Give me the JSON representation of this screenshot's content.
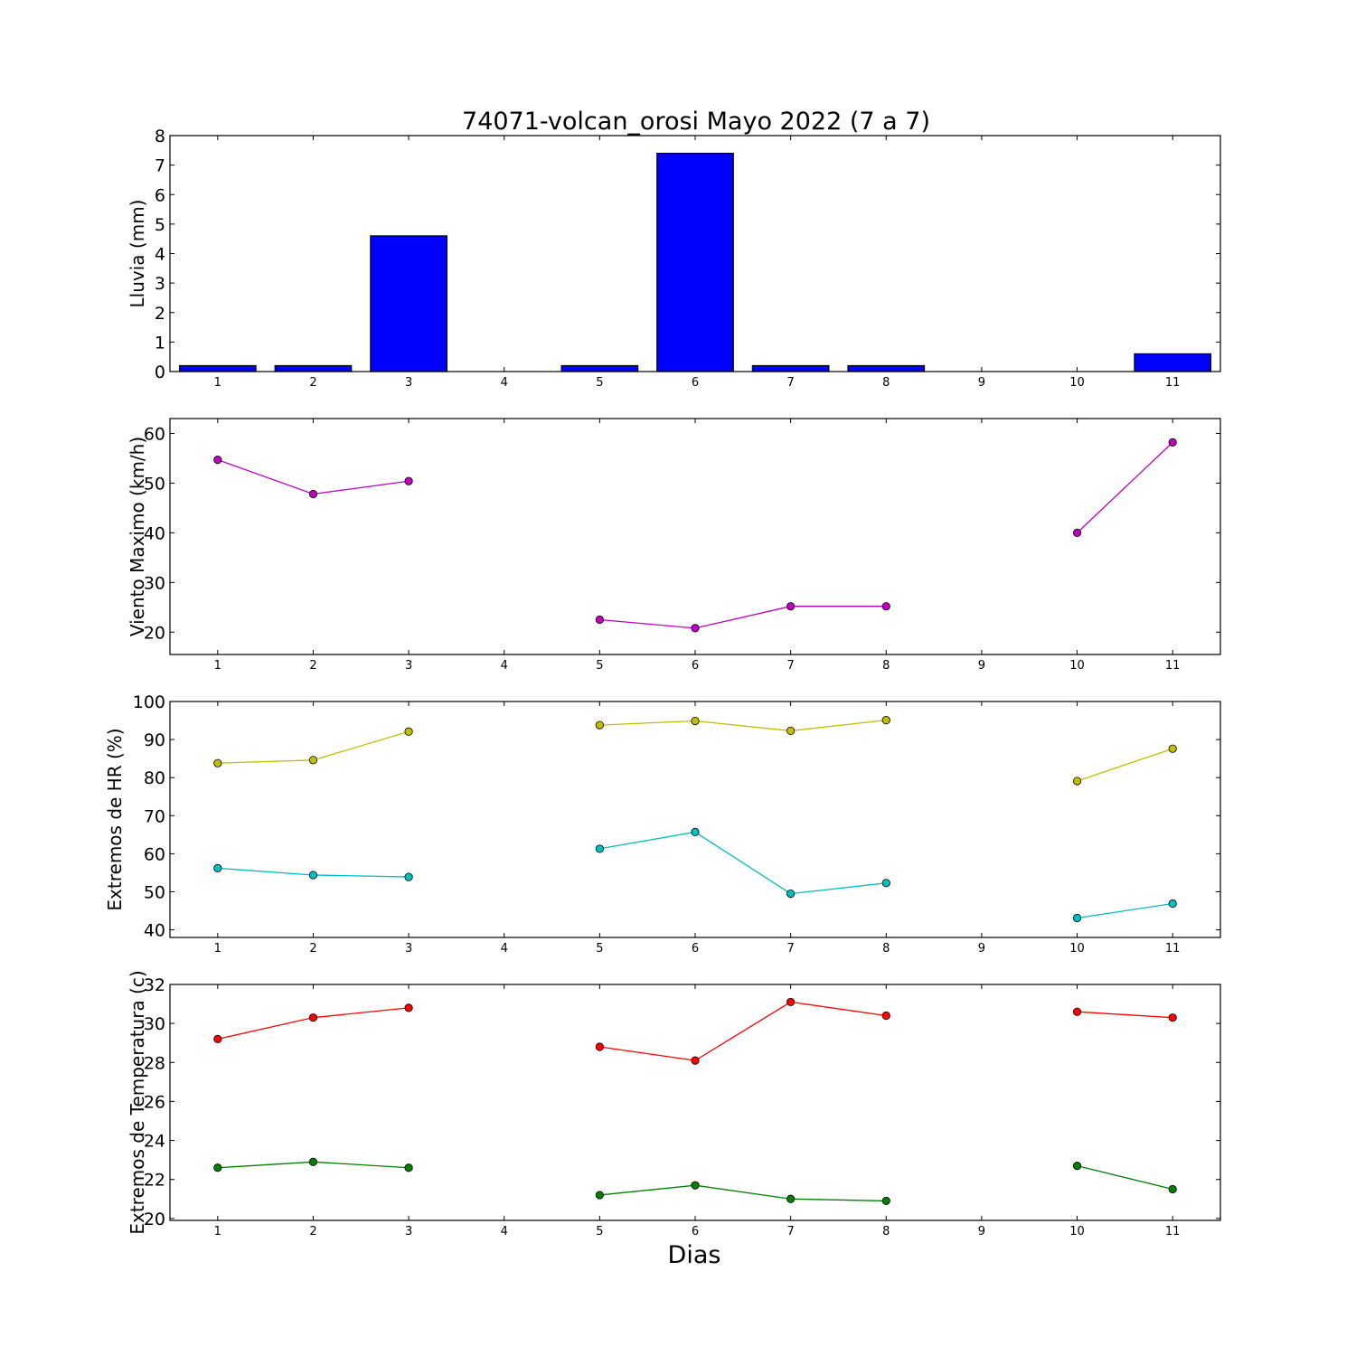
{
  "title": "74071-volcan_orosi Mayo 2022  (7 a 7)",
  "xlabel": "Dias",
  "chart_data": [
    {
      "type": "bar",
      "ylabel": "Lluvia (mm)",
      "xlim": [
        0.5,
        11.5
      ],
      "ylim": [
        0,
        8
      ],
      "yticks": [
        0,
        1,
        2,
        3,
        4,
        5,
        6,
        7,
        8
      ],
      "xticks": [
        1,
        2,
        3,
        4,
        5,
        6,
        7,
        8,
        9,
        10,
        11
      ],
      "categories": [
        1,
        2,
        3,
        4,
        5,
        6,
        7,
        8,
        9,
        10,
        11
      ],
      "values": [
        0.2,
        0.2,
        4.6,
        null,
        0.2,
        7.4,
        0.2,
        0.2,
        null,
        0.0,
        0.6
      ],
      "color": "#0000ff"
    },
    {
      "type": "line",
      "ylabel": "Viento Maximo (km/h)",
      "xlim": [
        0.5,
        11.5
      ],
      "ylim": [
        15.5,
        63
      ],
      "yticks": [
        20,
        30,
        40,
        50,
        60
      ],
      "xticks": [
        1,
        2,
        3,
        4,
        5,
        6,
        7,
        8,
        9,
        10,
        11
      ],
      "series": [
        {
          "x": [
            1,
            2,
            3,
            4,
            5,
            6,
            7,
            8,
            9,
            10,
            11
          ],
          "values": [
            54.7,
            47.8,
            50.4,
            null,
            22.5,
            20.8,
            25.2,
            25.2,
            null,
            40.0,
            58.2
          ],
          "color": "#bf00bf"
        }
      ]
    },
    {
      "type": "line",
      "ylabel": "Extremos de HR (%)",
      "xlim": [
        0.5,
        11.5
      ],
      "ylim": [
        38,
        100
      ],
      "yticks": [
        40,
        50,
        60,
        70,
        80,
        90,
        100
      ],
      "xticks": [
        1,
        2,
        3,
        4,
        5,
        6,
        7,
        8,
        9,
        10,
        11
      ],
      "series": [
        {
          "x": [
            1,
            2,
            3,
            4,
            5,
            6,
            7,
            8,
            9,
            10,
            11
          ],
          "values": [
            83.8,
            84.6,
            92.1,
            null,
            93.8,
            94.9,
            92.3,
            95.1,
            null,
            79.1,
            87.6
          ],
          "color": "#bfbf00"
        },
        {
          "x": [
            1,
            2,
            3,
            4,
            5,
            6,
            7,
            8,
            9,
            10,
            11
          ],
          "values": [
            56.2,
            54.4,
            53.9,
            null,
            61.3,
            65.7,
            49.5,
            52.3,
            null,
            43.1,
            46.9
          ],
          "color": "#00bfbf"
        }
      ]
    },
    {
      "type": "line",
      "ylabel": "Extremos de Temperatura (c)",
      "xlim": [
        0.5,
        11.5
      ],
      "ylim": [
        19.9,
        32
      ],
      "yticks": [
        20,
        22,
        24,
        26,
        28,
        30,
        32
      ],
      "xticks": [
        1,
        2,
        3,
        4,
        5,
        6,
        7,
        8,
        9,
        10,
        11
      ],
      "series": [
        {
          "x": [
            1,
            2,
            3,
            4,
            5,
            6,
            7,
            8,
            9,
            10,
            11
          ],
          "values": [
            29.2,
            30.3,
            30.8,
            null,
            28.8,
            28.1,
            31.1,
            30.4,
            null,
            30.6,
            30.3
          ],
          "color": "#ff0000"
        },
        {
          "x": [
            1,
            2,
            3,
            4,
            5,
            6,
            7,
            8,
            9,
            10,
            11
          ],
          "values": [
            22.6,
            22.9,
            22.6,
            null,
            21.2,
            21.7,
            21.0,
            20.9,
            null,
            22.7,
            21.5
          ],
          "color": "#008000"
        }
      ]
    }
  ]
}
